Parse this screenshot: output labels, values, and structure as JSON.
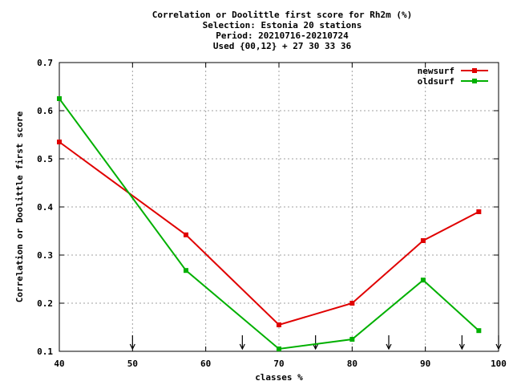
{
  "chart_data": {
    "type": "line",
    "title_lines": [
      "Correlation or Doolittle first score  for Rh2m (%)",
      "Selection: Estonia     20 stations",
      "Period: 20210716-20210724",
      "Used {00,12} + 27 30 33 36"
    ],
    "xlabel": "classes %",
    "ylabel": "Correlation or Doolittle first score",
    "xlim": [
      40,
      100
    ],
    "ylim": [
      0.1,
      0.7
    ],
    "xticks": [
      40,
      50,
      60,
      70,
      80,
      90,
      100
    ],
    "xtick_labels": [
      "40",
      "50",
      "60",
      "70",
      "80",
      "90",
      "100"
    ],
    "yticks": [
      0.1,
      0.2,
      0.3,
      0.4,
      0.5,
      0.6,
      0.7
    ],
    "ytick_labels": [
      "0.1",
      "0.2",
      "0.3",
      "0.4",
      "0.5",
      "0.6",
      "0.7"
    ],
    "grid": true,
    "legend_position": "top-right",
    "arrows_x": [
      50,
      65,
      75,
      85,
      95,
      100
    ],
    "series": [
      {
        "name": "newsurf",
        "color": "#e00000",
        "x": [
          40,
          57.3,
          70,
          80,
          89.7,
          97.3
        ],
        "y": [
          0.535,
          0.342,
          0.155,
          0.2,
          0.33,
          0.39
        ]
      },
      {
        "name": "oldsurf",
        "color": "#00b000",
        "x": [
          40,
          57.3,
          70,
          80,
          89.7,
          97.3
        ],
        "y": [
          0.625,
          0.268,
          0.105,
          0.125,
          0.248,
          0.143
        ]
      }
    ]
  }
}
